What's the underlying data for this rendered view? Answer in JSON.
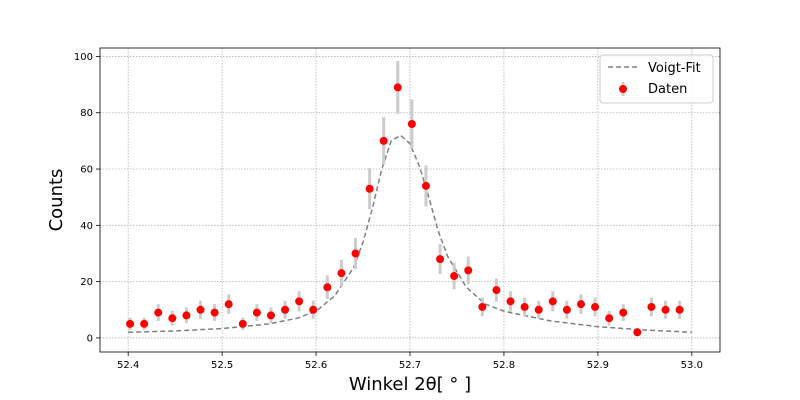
{
  "chart_data": {
    "type": "scatter",
    "xlabel": "Winkel 2θ[ ° ]",
    "ylabel": "Counts",
    "xlim": [
      52.37,
      53.03
    ],
    "ylim": [
      -5,
      103
    ],
    "xticks": [
      "52.4",
      "52.5",
      "52.6",
      "52.7",
      "52.8",
      "52.9",
      "53.0"
    ],
    "yticks": [
      "0",
      "20",
      "40",
      "60",
      "80",
      "100"
    ],
    "grid": true,
    "legend_position": "top-right",
    "series": [
      {
        "name": "Voigt-Fit",
        "kind": "line",
        "style": "dashed",
        "color": "#7f7f7f",
        "x": [
          52.4,
          52.45,
          52.5,
          52.55,
          52.58,
          52.6,
          52.62,
          52.64,
          52.65,
          52.66,
          52.67,
          52.68,
          52.69,
          52.7,
          52.71,
          52.72,
          52.73,
          52.74,
          52.76,
          52.78,
          52.8,
          52.85,
          52.9,
          52.95,
          53.0
        ],
        "values": [
          2,
          2.5,
          3.3,
          5,
          7,
          9.5,
          15,
          25,
          34,
          46,
          60,
          70,
          72,
          69,
          61,
          50,
          38,
          29,
          18,
          12,
          9.5,
          6,
          4,
          2.8,
          2
        ]
      },
      {
        "name": "Daten",
        "kind": "scatter",
        "color": "#ff0000",
        "error_color": "#cccccc",
        "x": [
          52.402,
          52.417,
          52.432,
          52.447,
          52.462,
          52.477,
          52.492,
          52.507,
          52.522,
          52.537,
          52.552,
          52.567,
          52.582,
          52.597,
          52.612,
          52.627,
          52.642,
          52.657,
          52.672,
          52.687,
          52.702,
          52.717,
          52.732,
          52.747,
          52.762,
          52.777,
          52.792,
          52.807,
          52.822,
          52.837,
          52.852,
          52.867,
          52.882,
          52.897,
          52.912,
          52.927,
          52.942,
          52.957,
          52.972,
          52.987
        ],
        "values": [
          5,
          5,
          9,
          7,
          8,
          10,
          9,
          12,
          5,
          9,
          8,
          10,
          13,
          10,
          18,
          23,
          30,
          53,
          70,
          89,
          76,
          54,
          28,
          22,
          24,
          11,
          17,
          13,
          11,
          10,
          13,
          10,
          12,
          11,
          7,
          9,
          2,
          11,
          10,
          10
        ],
        "errors": [
          2.2,
          2.2,
          3,
          2.6,
          2.8,
          3.2,
          3,
          3.5,
          2.2,
          3,
          2.8,
          3.2,
          3.6,
          3.2,
          4.2,
          4.8,
          5.5,
          7.3,
          8.4,
          9.4,
          8.7,
          7.3,
          5.3,
          4.7,
          4.9,
          3.3,
          4.1,
          3.6,
          3.3,
          3.2,
          3.6,
          3.2,
          3.5,
          3.3,
          2.6,
          3,
          1.4,
          3.3,
          3.2,
          3.2
        ]
      }
    ]
  }
}
